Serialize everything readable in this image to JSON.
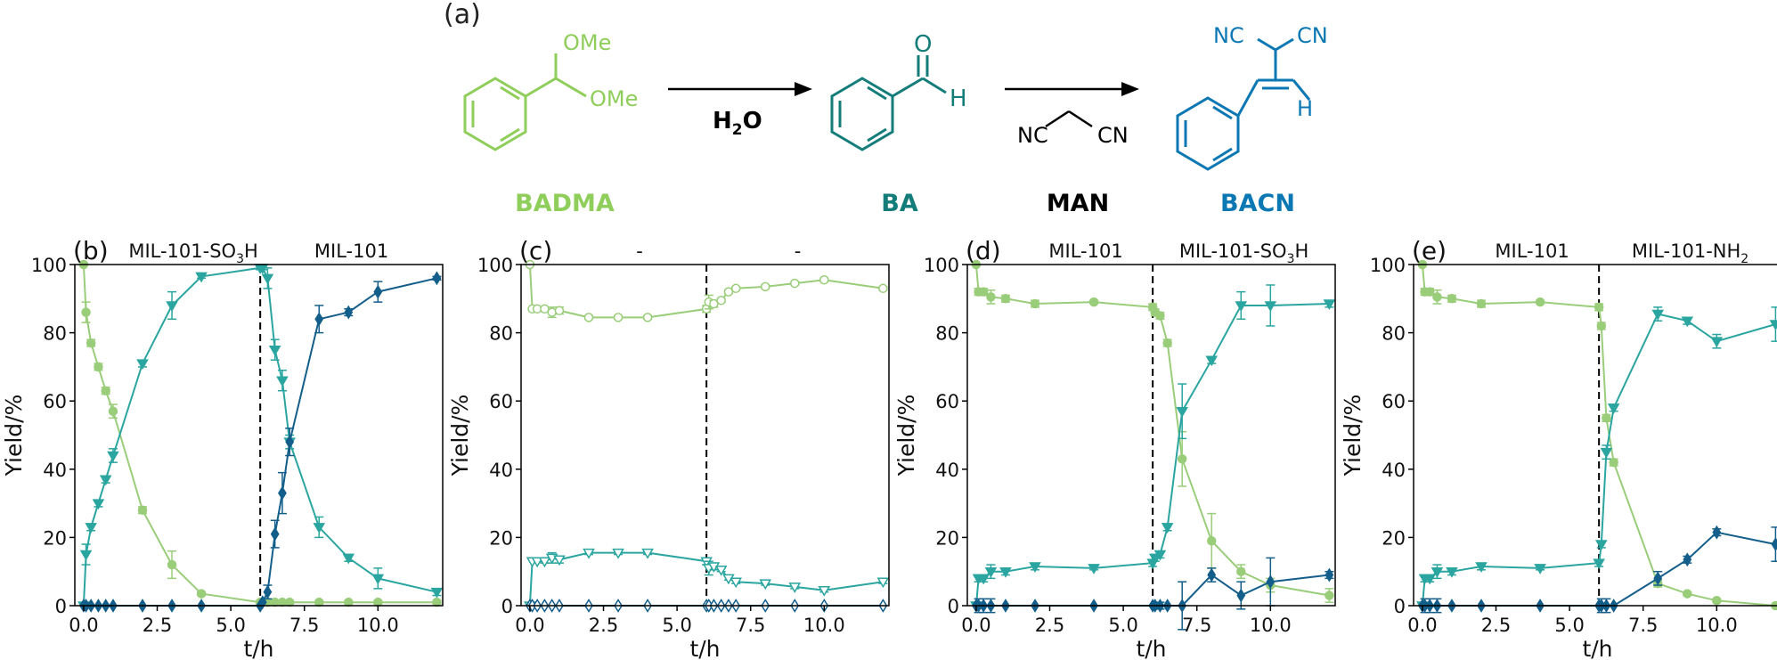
{
  "scheme": {
    "panel_label": "(a)",
    "reagent_label": "H",
    "reagent_subscript": "2",
    "reagent_suffix": "O",
    "badma_ome_top": "OMe",
    "badma_ome_bottom": "OMe",
    "ba_o": "O",
    "ba_h": "H",
    "man_nc": "NC",
    "man_cn": "CN",
    "bacn_nc": "NC",
    "bacn_cn": "CN",
    "bacn_h": "H",
    "compound_labels": [
      "BADMA",
      "BA",
      "MAN",
      "BACN"
    ],
    "colors": {
      "BADMA": "#8fce5b",
      "BA": "#147d7a",
      "MAN": "#000000",
      "BACN": "#0b78b4"
    }
  },
  "series_colors": {
    "BADMA": "#9acd7a",
    "BA": "#2aa5a0",
    "BACN": "#135e8a"
  },
  "chart_data": [
    {
      "panel": "(b)",
      "type": "line",
      "catalyst_left": "MIL-101-SO",
      "catalyst_left_sub": "3",
      "catalyst_left_suffix": "H",
      "catalyst_right": "MIL-101",
      "catalyst_right_sub": "",
      "catalyst_right_suffix": "",
      "xlabel": "t/h",
      "ylabel": "Yield/%",
      "xlim": [
        -0.3,
        12.2
      ],
      "ylim": [
        0,
        100
      ],
      "xticks": [
        "0.0",
        "2.5",
        "5.0",
        "7.5",
        "10.0"
      ],
      "yticks": [
        "0",
        "20",
        "40",
        "60",
        "80",
        "100"
      ],
      "switch_time": 6,
      "filled": true,
      "series": [
        {
          "compound": "BADMA",
          "marker": "circle",
          "x": [
            0,
            0.08,
            0.25,
            0.5,
            0.75,
            1,
            2,
            3,
            4,
            6,
            6.08,
            6.25,
            6.5,
            6.75,
            7,
            8,
            9,
            10,
            12
          ],
          "y": [
            100,
            86,
            77,
            70,
            63,
            57,
            28,
            12,
            3.5,
            1,
            1,
            1,
            1,
            1,
            1,
            1,
            1,
            1,
            1
          ],
          "err": [
            0,
            3,
            1,
            1,
            1,
            2,
            1,
            4,
            0.5,
            0.5,
            0.5,
            0.5,
            0.5,
            0.5,
            0.5,
            0.5,
            0.5,
            0.5,
            0.5
          ]
        },
        {
          "compound": "BA",
          "marker": "triangle-down",
          "x": [
            0,
            0.08,
            0.25,
            0.5,
            0.75,
            1,
            2,
            3,
            4,
            6,
            6.08,
            6.25,
            6.5,
            6.75,
            7,
            8,
            9,
            10,
            12
          ],
          "y": [
            0,
            15,
            23,
            30,
            37,
            44,
            71,
            88,
            96.5,
            99,
            99,
            96,
            75,
            66,
            48,
            23,
            14,
            8,
            4
          ],
          "err": [
            0,
            3,
            1,
            1,
            1,
            2,
            1,
            4,
            0.5,
            0.5,
            0.5,
            3,
            3,
            3,
            2,
            3,
            1,
            3,
            1
          ]
        },
        {
          "compound": "BACN",
          "marker": "diamond",
          "x": [
            0,
            0.08,
            0.25,
            0.5,
            0.75,
            1,
            2,
            3,
            4,
            6,
            6.08,
            6.25,
            6.5,
            6.75,
            7,
            8,
            9,
            10,
            12
          ],
          "y": [
            0,
            0,
            0,
            0,
            0,
            0,
            0,
            0,
            0,
            0,
            1,
            4,
            21,
            33,
            48,
            84,
            86,
            92,
            96
          ],
          "err": [
            0,
            0,
            0,
            0,
            0,
            0,
            0,
            0,
            0,
            0,
            0,
            2,
            4,
            6,
            4,
            4,
            1,
            3,
            0.5
          ]
        }
      ]
    },
    {
      "panel": "(c)",
      "type": "line",
      "catalyst_left": "-",
      "catalyst_left_sub": "",
      "catalyst_left_suffix": "",
      "catalyst_right": "-",
      "catalyst_right_sub": "",
      "catalyst_right_suffix": "",
      "xlabel": "t/h",
      "ylabel": "Yield/%",
      "xlim": [
        -0.3,
        12.2
      ],
      "ylim": [
        0,
        100
      ],
      "xticks": [
        "0.0",
        "2.5",
        "5.0",
        "7.5",
        "10.0"
      ],
      "yticks": [
        "0",
        "20",
        "40",
        "60",
        "80",
        "100"
      ],
      "switch_time": 6,
      "filled": false,
      "series": [
        {
          "compound": "BADMA",
          "marker": "circle",
          "x": [
            0,
            0.08,
            0.25,
            0.5,
            0.75,
            1,
            2,
            3,
            4,
            6,
            6.08,
            6.25,
            6.5,
            6.75,
            7,
            8,
            9,
            10,
            12
          ],
          "y": [
            100,
            87,
            87,
            87,
            86,
            86.5,
            84.5,
            84.5,
            84.5,
            87,
            89,
            88.5,
            89.5,
            92,
            93,
            93.5,
            94.5,
            95.5,
            93
          ],
          "err": [
            0,
            0,
            0,
            0.5,
            1.5,
            1,
            0.5,
            0.5,
            0.5,
            1,
            2,
            1,
            0.5,
            0.5,
            0.5,
            0.5,
            0.5,
            0.5,
            0.5
          ]
        },
        {
          "compound": "BA",
          "marker": "triangle-down",
          "x": [
            0,
            0.08,
            0.25,
            0.5,
            0.75,
            1,
            2,
            3,
            4,
            6,
            6.08,
            6.25,
            6.5,
            6.75,
            7,
            8,
            9,
            10,
            12
          ],
          "y": [
            0,
            13,
            13,
            13,
            14,
            13.5,
            15.5,
            15.5,
            15.5,
            13,
            11,
            11.5,
            10.5,
            8,
            7,
            6.5,
            5.5,
            4.5,
            7
          ],
          "err": [
            0,
            0,
            0,
            0.5,
            1.5,
            1,
            0.5,
            0.5,
            0.5,
            1,
            2,
            1,
            0.5,
            0.5,
            0.5,
            0.5,
            0.5,
            0.5,
            0.5
          ]
        },
        {
          "compound": "BACN",
          "marker": "diamond",
          "x": [
            0,
            0.08,
            0.25,
            0.5,
            0.75,
            1,
            2,
            3,
            4,
            6,
            6.08,
            6.25,
            6.5,
            6.75,
            7,
            8,
            9,
            10,
            12
          ],
          "y": [
            0,
            0,
            0,
            0,
            0,
            0,
            0,
            0,
            0,
            0,
            0,
            0,
            0,
            0,
            0,
            0,
            0,
            0,
            0
          ],
          "err": [
            0,
            0,
            0,
            0,
            0,
            0,
            0,
            0,
            0,
            0,
            0,
            0,
            0,
            0,
            0,
            0,
            0,
            0,
            0
          ]
        }
      ]
    },
    {
      "panel": "(d)",
      "type": "line",
      "catalyst_left": "MIL-101",
      "catalyst_left_sub": "",
      "catalyst_left_suffix": "",
      "catalyst_right": "MIL-101-SO",
      "catalyst_right_sub": "3",
      "catalyst_right_suffix": "H",
      "xlabel": "t/h",
      "ylabel": "Yield/%",
      "xlim": [
        -0.3,
        12.2
      ],
      "ylim": [
        0,
        100
      ],
      "xticks": [
        "0.0",
        "2.5",
        "5.0",
        "7.5",
        "10.0"
      ],
      "yticks": [
        "0",
        "20",
        "40",
        "60",
        "80",
        "100"
      ],
      "switch_time": 6,
      "filled": true,
      "series": [
        {
          "compound": "BADMA",
          "marker": "circle",
          "x": [
            0,
            0.08,
            0.25,
            0.5,
            1,
            2,
            4,
            6,
            6.08,
            6.25,
            6.5,
            7,
            8,
            9,
            10,
            12
          ],
          "y": [
            100,
            92,
            92,
            90.5,
            90,
            88.5,
            89,
            87.5,
            86,
            85,
            77,
            43,
            19,
            10,
            6,
            3
          ],
          "err": [
            0,
            1,
            1,
            2,
            1,
            1,
            0.5,
            1,
            1,
            1,
            1,
            8,
            8,
            2,
            2,
            2
          ]
        },
        {
          "compound": "BA",
          "marker": "triangle-down",
          "x": [
            0,
            0.08,
            0.25,
            0.5,
            1,
            2,
            4,
            6,
            6.08,
            6.25,
            6.5,
            7,
            8,
            9,
            10,
            12
          ],
          "y": [
            0,
            8,
            8,
            10,
            10,
            11.5,
            11,
            12.5,
            14,
            15,
            23,
            57,
            72,
            88,
            88,
            88.5
          ],
          "err": [
            0,
            1,
            1,
            2,
            1,
            1,
            0.5,
            1,
            1,
            1,
            1,
            8,
            1,
            4,
            6,
            1
          ]
        },
        {
          "compound": "BACN",
          "marker": "diamond",
          "x": [
            0,
            0.08,
            0.25,
            0.5,
            1,
            2,
            4,
            6,
            6.08,
            6.25,
            6.5,
            7,
            8,
            9,
            10,
            12
          ],
          "y": [
            0,
            0,
            0,
            0,
            0,
            0,
            0,
            0,
            0,
            0,
            0,
            0,
            9,
            3,
            7,
            9
          ],
          "err": [
            0,
            2,
            2,
            2,
            0,
            0,
            0,
            0,
            0,
            1,
            0,
            7,
            2,
            4,
            7,
            1
          ]
        }
      ]
    },
    {
      "panel": "(e)",
      "type": "line",
      "catalyst_left": "MIL-101",
      "catalyst_left_sub": "",
      "catalyst_left_suffix": "",
      "catalyst_right": "MIL-101-NH",
      "catalyst_right_sub": "2",
      "catalyst_right_suffix": "",
      "xlabel": "t/h",
      "ylabel": "Yield/%",
      "xlim": [
        -0.3,
        12.2
      ],
      "ylim": [
        0,
        100
      ],
      "xticks": [
        "0.0",
        "2.5",
        "5.0",
        "7.5",
        "10.0"
      ],
      "yticks": [
        "0",
        "20",
        "40",
        "60",
        "80",
        "100"
      ],
      "switch_time": 6,
      "filled": true,
      "series": [
        {
          "compound": "BADMA",
          "marker": "circle",
          "x": [
            0,
            0.08,
            0.25,
            0.5,
            1,
            2,
            4,
            6,
            6.08,
            6.25,
            6.5,
            8,
            9,
            10,
            12
          ],
          "y": [
            100,
            92,
            92,
            90.5,
            90,
            88.5,
            89,
            87.5,
            82,
            55,
            42,
            6.5,
            3.5,
            1.5,
            0
          ],
          "err": [
            0,
            1,
            1,
            2,
            1,
            1,
            0.5,
            1,
            1,
            1,
            1,
            1,
            0.5,
            0.5,
            0.5
          ]
        },
        {
          "compound": "BA",
          "marker": "triangle-down",
          "x": [
            0,
            0.08,
            0.25,
            0.5,
            1,
            2,
            4,
            6,
            6.08,
            6.25,
            6.5,
            8,
            9,
            10,
            12
          ],
          "y": [
            0,
            8,
            8,
            10,
            10,
            11.5,
            11,
            12.5,
            18,
            45,
            58,
            85.5,
            83.5,
            77.5,
            82.5
          ],
          "err": [
            0,
            1,
            1,
            2,
            1,
            1,
            0.5,
            1,
            1,
            2,
            1,
            2,
            1,
            2,
            5
          ]
        },
        {
          "compound": "BACN",
          "marker": "diamond",
          "x": [
            0,
            0.08,
            0.25,
            0.5,
            1,
            2,
            4,
            6,
            6.08,
            6.25,
            6.5,
            8,
            9,
            10,
            12
          ],
          "y": [
            0,
            0,
            0,
            0,
            0,
            0,
            0,
            0,
            0,
            0,
            0,
            8,
            13.5,
            21.5,
            18
          ],
          "err": [
            0,
            2,
            2,
            2,
            0,
            0,
            0,
            0,
            2,
            2,
            0,
            2,
            1,
            1,
            5
          ]
        }
      ]
    }
  ]
}
